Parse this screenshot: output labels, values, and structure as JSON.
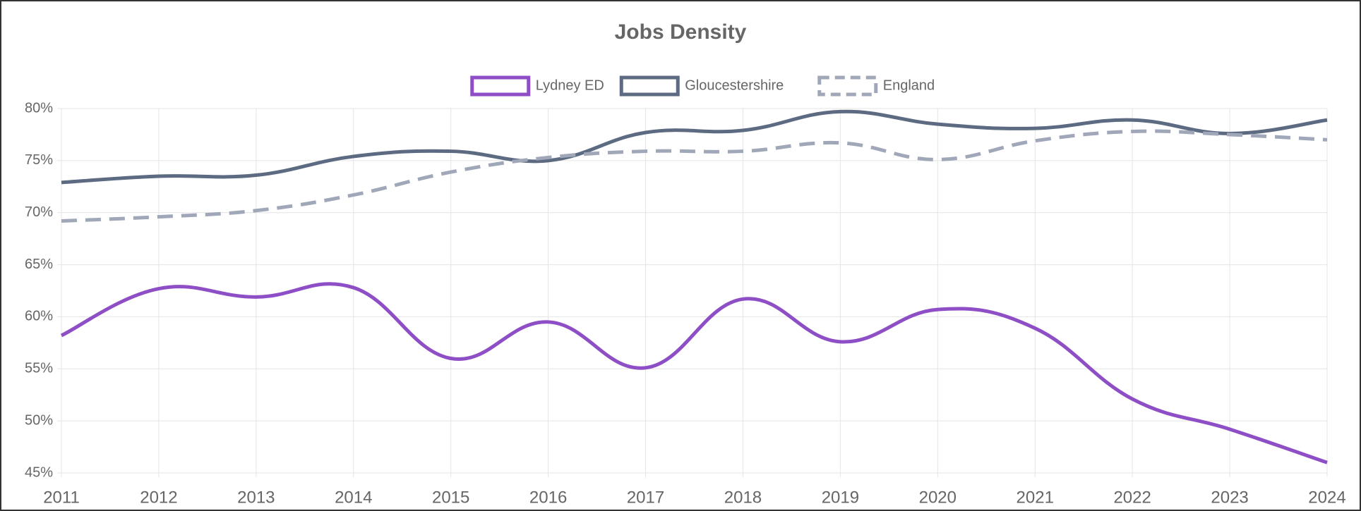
{
  "chart_data": {
    "type": "line",
    "title": "Jobs Density",
    "categories": [
      "2011",
      "2012",
      "2013",
      "2014",
      "2015",
      "2016",
      "2017",
      "2018",
      "2019",
      "2020",
      "2021",
      "2022",
      "2023",
      "2024"
    ],
    "series": [
      {
        "name": "Lydney ED",
        "color": "#8e4ec6",
        "dashed": false,
        "values": [
          58.2,
          62.7,
          61.9,
          62.8,
          56.0,
          59.5,
          55.1,
          61.7,
          57.6,
          60.7,
          58.9,
          52.1,
          49.2,
          46.0
        ]
      },
      {
        "name": "Gloucestershire",
        "color": "#5d6b82",
        "dashed": false,
        "values": [
          72.9,
          73.5,
          73.6,
          75.4,
          75.9,
          75.0,
          77.7,
          77.9,
          79.7,
          78.5,
          78.1,
          78.9,
          77.6,
          78.9
        ]
      },
      {
        "name": "England",
        "color": "#a0a7b8",
        "dashed": true,
        "values": [
          69.2,
          69.6,
          70.2,
          71.7,
          73.9,
          75.3,
          75.9,
          75.9,
          76.7,
          75.1,
          76.9,
          77.8,
          77.5,
          77.0
        ]
      }
    ],
    "ylim": [
      45,
      80
    ],
    "yticks": [
      {
        "value": 45,
        "label": "45%"
      },
      {
        "value": 50,
        "label": "50%"
      },
      {
        "value": 55,
        "label": "55%"
      },
      {
        "value": 60,
        "label": "60%"
      },
      {
        "value": 65,
        "label": "65%"
      },
      {
        "value": 70,
        "label": "70%"
      },
      {
        "value": 75,
        "label": "75%"
      },
      {
        "value": 80,
        "label": "80%"
      }
    ],
    "grid": true,
    "legend": "top"
  }
}
